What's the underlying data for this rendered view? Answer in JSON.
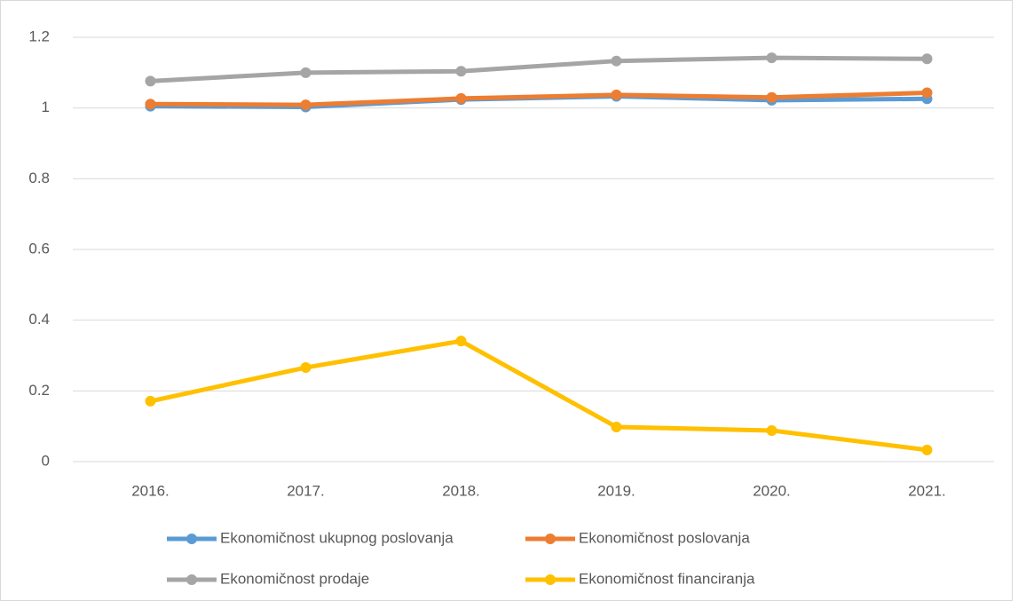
{
  "chart_data": {
    "type": "line",
    "categories": [
      "2016.",
      "2017.",
      "2018.",
      "2019.",
      "2020.",
      "2021."
    ],
    "series": [
      {
        "name": "Ekonomičnost ukupnog poslovanja",
        "color": "#5b9bd5",
        "values": [
          1.005,
          1.003,
          1.024,
          1.033,
          1.022,
          1.026
        ]
      },
      {
        "name": "Ekonomičnost poslovanja",
        "color": "#ed7d31",
        "values": [
          1.011,
          1.009,
          1.027,
          1.037,
          1.03,
          1.043
        ]
      },
      {
        "name": "Ekonomičnost prodaje",
        "color": "#a5a5a5",
        "values": [
          1.076,
          1.1,
          1.104,
          1.133,
          1.142,
          1.139
        ]
      },
      {
        "name": "Ekonomičnost financiranja",
        "color": "#ffc000",
        "values": [
          0.171,
          0.266,
          0.341,
          0.098,
          0.088,
          0.033
        ]
      }
    ],
    "ylim": [
      0,
      1.2
    ],
    "yticks": [
      0,
      0.2,
      0.4,
      0.6,
      0.8,
      1,
      1.2
    ],
    "grid": true,
    "legend": "bottom"
  }
}
